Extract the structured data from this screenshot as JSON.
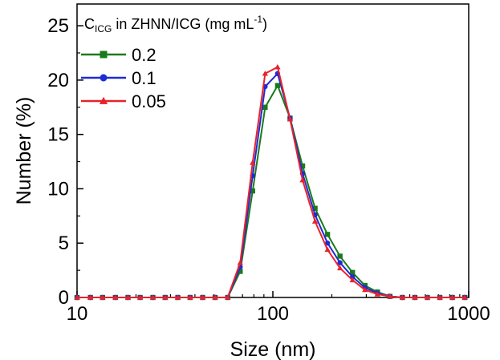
{
  "chart_data": {
    "type": "line",
    "xlabel": "Size (nm)",
    "ylabel": "Number (%)",
    "xscale": "log",
    "xlim": [
      10,
      1000
    ],
    "ylim": [
      0,
      27
    ],
    "xticks": [
      10,
      100,
      1000
    ],
    "xtick_labels": [
      "10",
      "100",
      "1000"
    ],
    "yticks": [
      0,
      5,
      10,
      15,
      20,
      25
    ],
    "ytick_labels": [
      "0",
      "5",
      "10",
      "15",
      "20",
      "25"
    ],
    "grid": false,
    "legend": {
      "position": "top-left",
      "title": {
        "prefix": "C",
        "subscript": "ICG",
        "middle": " in ZHNN/ICG (mg mL",
        "superscript": "-1",
        "suffix": ")"
      }
    },
    "x": [
      10.0,
      11.7,
      13.5,
      15.7,
      18.2,
      21.0,
      24.4,
      28.2,
      32.7,
      37.8,
      43.8,
      50.7,
      58.8,
      68.1,
      78.8,
      91.3,
      105.7,
      122.4,
      141.8,
      164.2,
      190.1,
      220.2,
      255.0,
      295.3,
      342.0,
      396.1,
      458.7,
      531.2,
      615.1,
      712.4,
      825.0,
      955.4
    ],
    "series": [
      {
        "name": "0.2",
        "color": "#1a7a1a",
        "marker": "square",
        "values": [
          0,
          0,
          0,
          0,
          0,
          0,
          0,
          0,
          0,
          0,
          0,
          0,
          0,
          2.4,
          9.8,
          17.5,
          19.5,
          16.5,
          12.1,
          8.2,
          5.8,
          3.8,
          2.3,
          1.1,
          0.5,
          0.1,
          0,
          0,
          0,
          0,
          0,
          0
        ]
      },
      {
        "name": "0.1",
        "color": "#1f2bd6",
        "marker": "circle",
        "values": [
          0,
          0,
          0,
          0,
          0,
          0,
          0,
          0,
          0,
          0,
          0,
          0,
          0,
          2.8,
          11.2,
          19.4,
          20.6,
          16.5,
          11.4,
          7.6,
          5.0,
          3.2,
          1.9,
          0.9,
          0.4,
          0.1,
          0,
          0,
          0,
          0,
          0,
          0
        ]
      },
      {
        "name": "0.05",
        "color": "#e8222a",
        "marker": "triangle",
        "values": [
          0,
          0,
          0,
          0,
          0,
          0,
          0,
          0,
          0,
          0,
          0,
          0,
          0,
          3.2,
          12.4,
          20.6,
          21.2,
          16.4,
          10.8,
          7.0,
          4.4,
          2.7,
          1.6,
          0.7,
          0.3,
          0.1,
          0,
          0,
          0,
          0,
          0,
          0
        ]
      }
    ]
  }
}
